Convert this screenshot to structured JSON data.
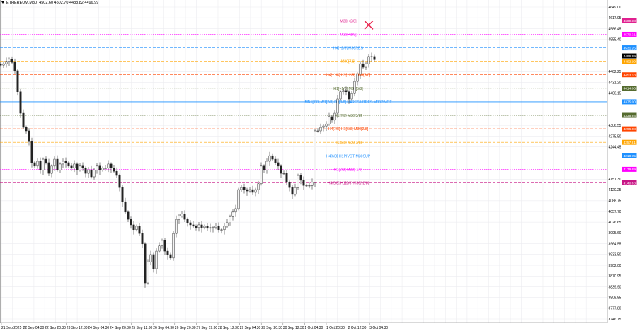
{
  "header": {
    "symbol": "ETHEREUM,M30",
    "ohlc": "4502.60 4502.70 4488.82 4496.99"
  },
  "chart_data": {
    "type": "candlestick",
    "timeframe": "M30",
    "ylim": [
      3746.75,
      4649.0
    ],
    "grid": true,
    "y_ticks": [
      "4649.00",
      "4617.95",
      "4586.45",
      "4555.40",
      "4462.25",
      "4431.20",
      "4400.15",
      "4306.55",
      "4275.50",
      "4244.45",
      "4151.30",
      "4120.25",
      "4088.75",
      "4057.70",
      "4026.65",
      "3995.60",
      "3964.55",
      "3933.50",
      "3902.00",
      "3870.95",
      "3839.90",
      "3808.85",
      "3777.80",
      "3746.75"
    ],
    "x_ticks": [
      "21 Sep 2025",
      "22 Sep 04:30",
      "22 Sep 20:30",
      "23 Sep 12:30",
      "24 Sep 04:30",
      "24 Sep 20:30",
      "25 Sep 12:30",
      "26 Sep 04:30",
      "26 Sep 20:30",
      "27 Sep 19:30",
      "28 Sep 12:30",
      "29 Sep 04:30",
      "29 Sep 20:30",
      "30 Sep 12:30",
      "1 Oct 04:30",
      "1 Oct 20:30",
      "2 Oct 12:30",
      "3 Oct 04:30"
    ],
    "close": [
      4481,
      4485,
      4492,
      4498,
      4489,
      4465,
      4404,
      4342,
      4301,
      4291,
      4260,
      4199,
      4189,
      4203,
      4178,
      4209,
      4199,
      4168,
      4189,
      4209,
      4178,
      4195,
      4203,
      4199,
      4189,
      4183,
      4195,
      4178,
      4189,
      4183,
      4168,
      4178,
      4158,
      4178,
      4189,
      4178,
      4183,
      4183,
      4195,
      4183,
      4174,
      4162,
      4127,
      4086,
      4056,
      4035,
      4019,
      4005,
      4015,
      3994,
      3964,
      3851,
      3912,
      3933,
      3892,
      3943,
      3958,
      3974,
      3943,
      3933,
      3923,
      3994,
      4035,
      4045,
      4050,
      4035,
      4025,
      4019,
      4015,
      4011,
      4019,
      4011,
      4015,
      4009,
      4011,
      4011,
      4015,
      4005,
      4005,
      4015,
      4025,
      4043,
      4056,
      4066,
      4121,
      4127,
      4121,
      4117,
      4121,
      4113,
      4121,
      4138,
      4189,
      4178,
      4203,
      4219,
      4209,
      4199,
      4189,
      4168,
      4168,
      4142,
      4127,
      4107,
      4127,
      4162,
      4148,
      4133,
      4133,
      4133,
      4142,
      4291,
      4291,
      4301,
      4305,
      4311,
      4332,
      4322,
      4342,
      4383,
      4404,
      4408,
      4404,
      4383,
      4399,
      4434,
      4455,
      4485,
      4475,
      4485,
      4506,
      4506,
      4497
    ],
    "current_price": {
      "value": "4496.99",
      "color": "#000000"
    },
    "marker": {
      "type": "cross",
      "price": 4597,
      "color": "#e8204a"
    },
    "levels": [
      {
        "label": "M30[+2/8]",
        "price": 4609.38,
        "price_label": "4609.38",
        "color": "#e0208f",
        "style": "dotted"
      },
      {
        "label": "M30[+1/8]",
        "price": 4570.31,
        "price_label": "4570.31",
        "color": "#ff00ff",
        "style": "dotted"
      },
      {
        "label": "H4[+2/8] M30RES",
        "price": 4531.25,
        "price_label": "4531.25",
        "color": "#1e90ff",
        "style": "dashed"
      },
      {
        "label": "M30[7/8]",
        "price": 4492.19,
        "price_label": "4492.19",
        "color": "#ffa500",
        "style": "dashed"
      },
      {
        "label": "H4[+1/8] H1[+2/8] M30[6/8]",
        "price": 4453.13,
        "price_label": "4453.13",
        "color": "#ff4500",
        "style": "dashed"
      },
      {
        "label": "H1[+1/8] M30[5/8]",
        "price": 4414.06,
        "price_label": "4414.06",
        "color": "#556b2f",
        "style": "dotted"
      },
      {
        "label": "MN1[7/8] W1[7/8] D1[8/8] H4RES H1RES M30PIVOT",
        "price": 4375.0,
        "price_label": "4375.00",
        "color": "#1e90ff",
        "style": "solid"
      },
      {
        "label": "H1[7/8] M30[3/8]",
        "price": 4335.94,
        "price_label": "4335.94",
        "color": "#556b2f",
        "style": "dotted"
      },
      {
        "label": "H4[7/8] H1[6/8] M30[2/8]",
        "price": 4296.88,
        "price_label": "4296.88",
        "color": "#ff4500",
        "style": "dashed"
      },
      {
        "label": "H1[5/8] M30[1/8]",
        "price": 4257.81,
        "price_label": "4257.81",
        "color": "#ffa500",
        "style": "dashed"
      },
      {
        "label": "H4[6/8] H1PIVOT M30SUP",
        "price": 4218.75,
        "price_label": "4218.75",
        "color": "#1e90ff",
        "style": "dashed"
      },
      {
        "label": "H1[3/8] M30[-1/8]",
        "price": 4179.69,
        "price_label": "4179.69",
        "color": "#ff00ff",
        "style": "dotted"
      },
      {
        "label": "H4[5/8] H1[2/8] M30[-2/8]",
        "price": 4140.63,
        "price_label": "4140.63",
        "color": "#c71585",
        "style": "dashed"
      }
    ]
  }
}
